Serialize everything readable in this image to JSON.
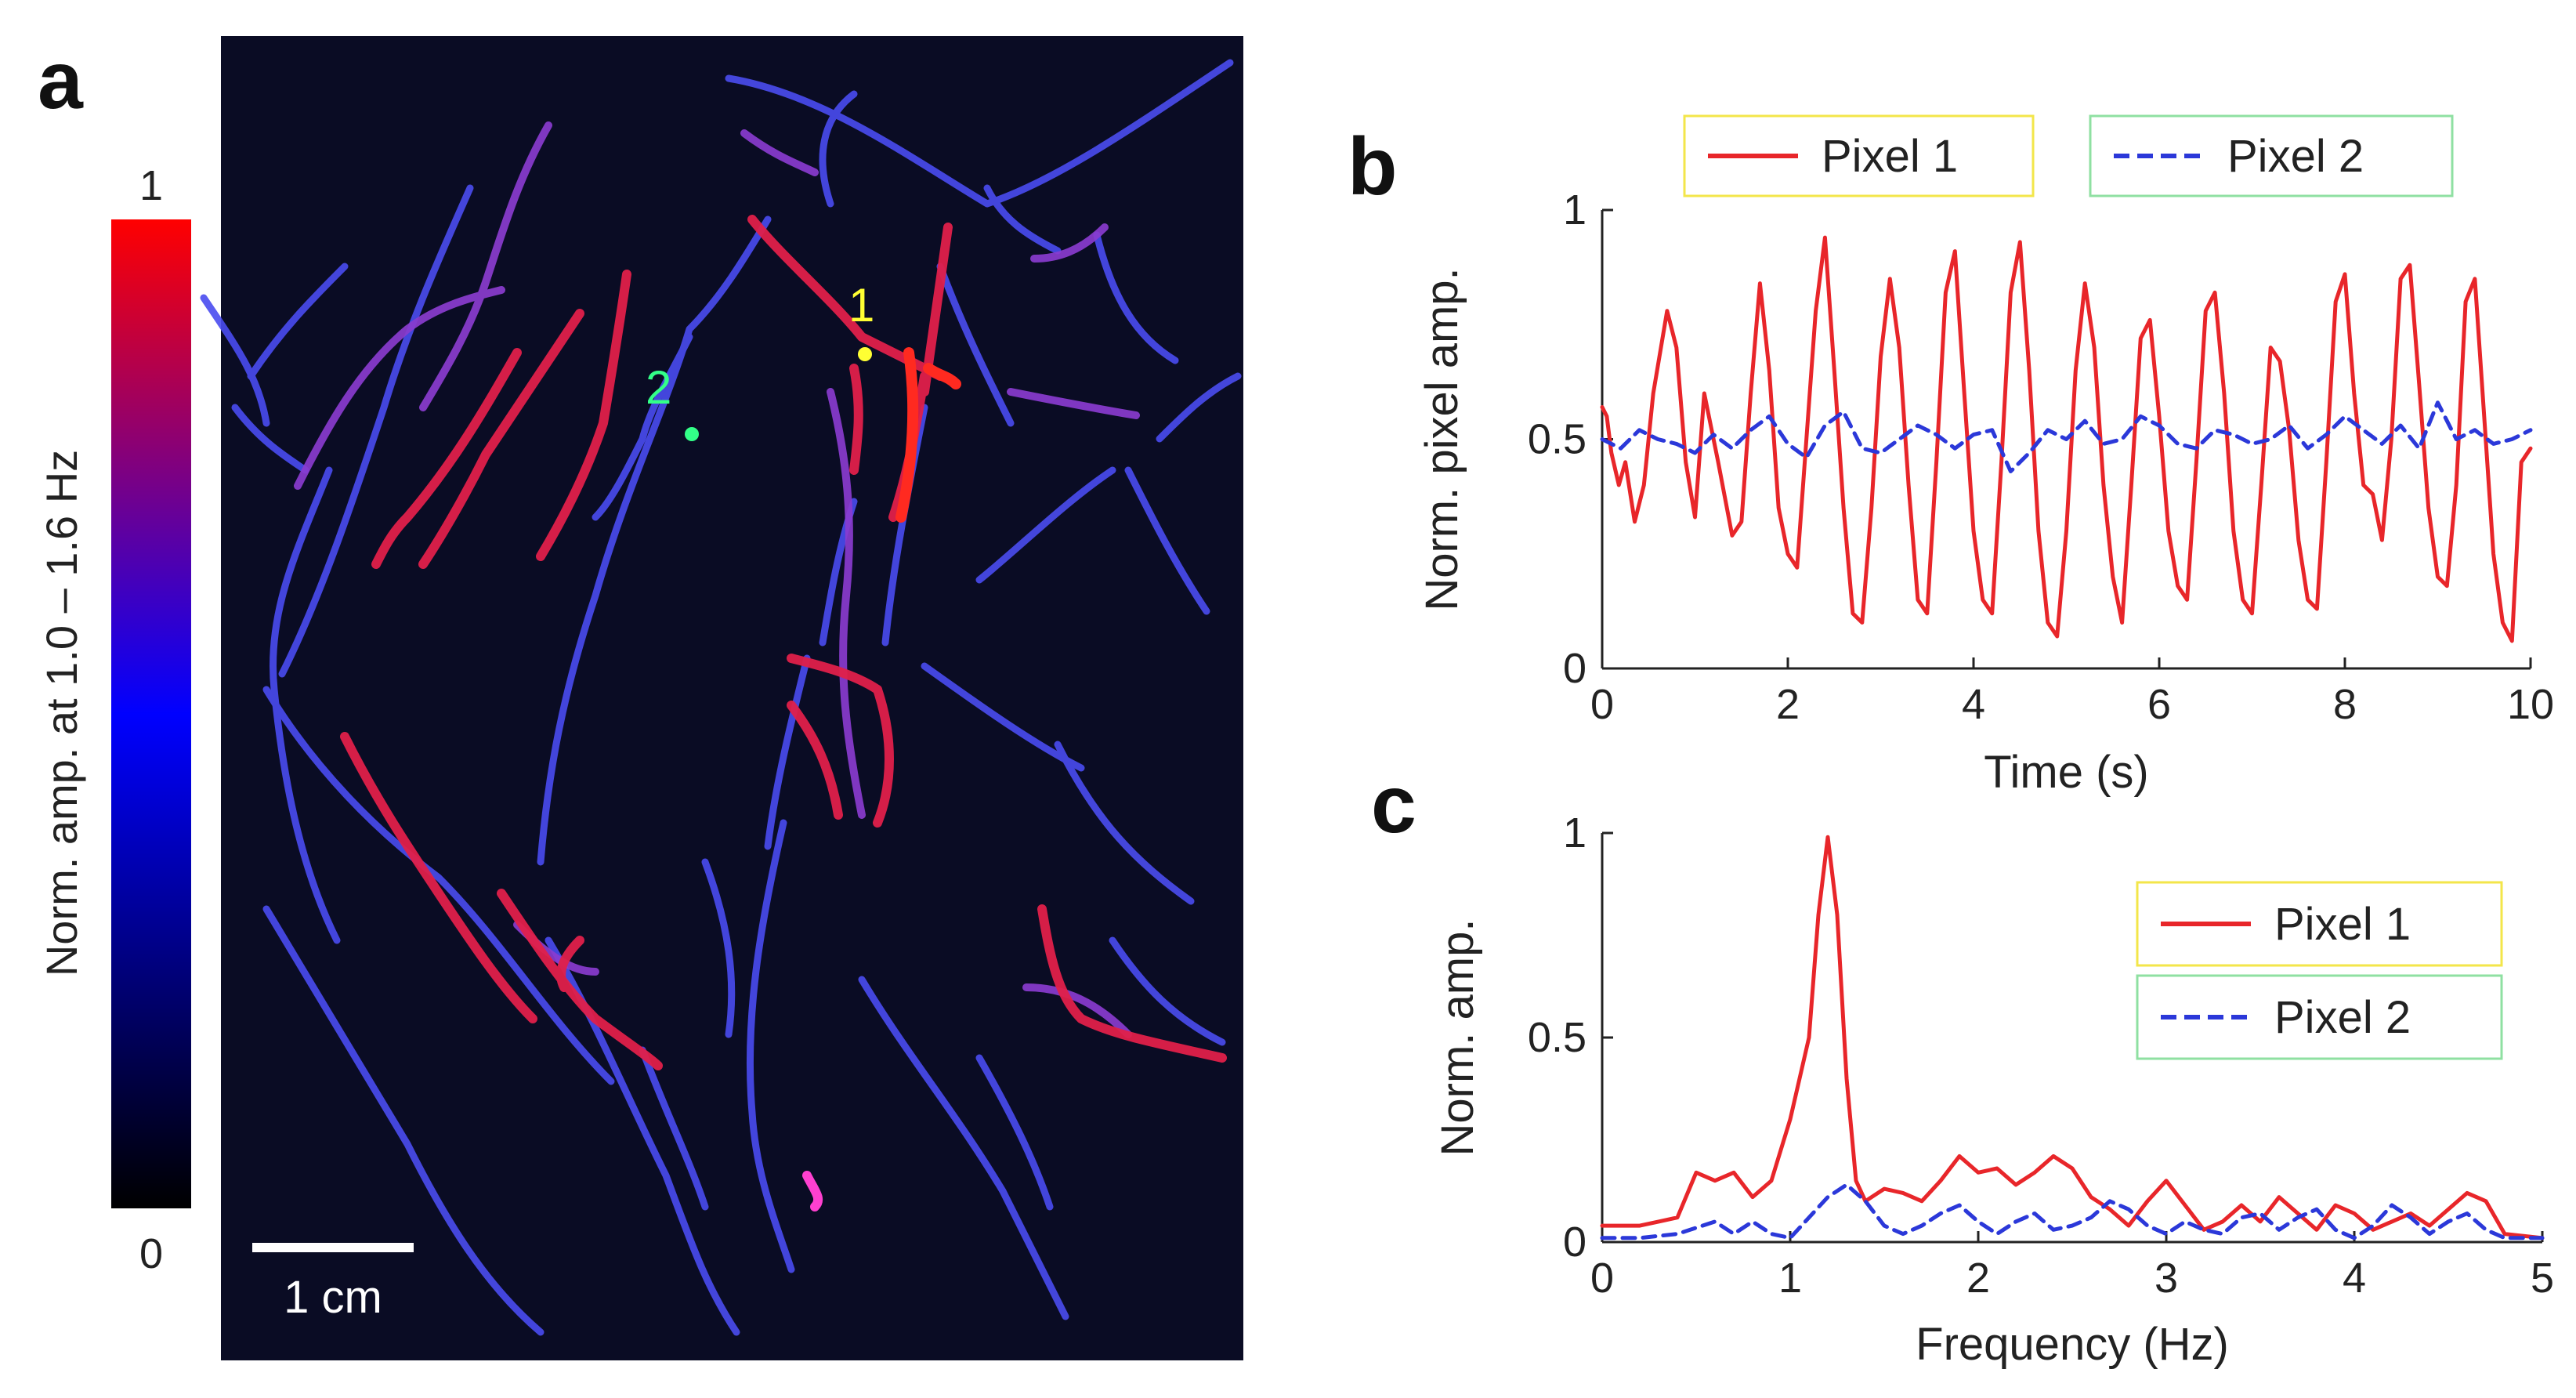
{
  "panels": {
    "a": {
      "letter": "a",
      "colorbar": {
        "label": "Norm. amp. at 1.0  – 1.6 Hz",
        "max_label": "1",
        "min_label": "0",
        "colors": [
          "#000000",
          "#0000ff",
          "#ff0000"
        ]
      },
      "scale_bar_label": "1 cm",
      "markers": [
        {
          "label": "1",
          "color": "#ffff33"
        },
        {
          "label": "2",
          "color": "#33ff88"
        }
      ],
      "image_background": "#0a0c24"
    },
    "b": {
      "letter": "b"
    },
    "c": {
      "letter": "c"
    }
  },
  "chart_data": [
    {
      "panel": "b",
      "type": "line",
      "xlabel": "Time (s)",
      "ylabel": "Norm. pixel amp.",
      "xlim": [
        0,
        10
      ],
      "ylim": [
        0,
        1
      ],
      "xticks": [
        0,
        2,
        4,
        6,
        8,
        10
      ],
      "yticks": [
        0,
        0.5,
        1
      ],
      "legend": {
        "placement": "top",
        "orientation": "horizontal"
      },
      "series": [
        {
          "name": "Pixel 1",
          "color": "#e8262a",
          "style": "solid",
          "legend_box": "#f3e64a",
          "x": [
            0,
            0.05,
            0.1,
            0.18,
            0.25,
            0.35,
            0.45,
            0.55,
            0.7,
            0.8,
            0.9,
            1.0,
            1.1,
            1.25,
            1.4,
            1.5,
            1.6,
            1.7,
            1.8,
            1.9,
            2.0,
            2.1,
            2.2,
            2.3,
            2.4,
            2.5,
            2.6,
            2.7,
            2.8,
            2.9,
            3.0,
            3.1,
            3.2,
            3.3,
            3.4,
            3.5,
            3.6,
            3.7,
            3.8,
            3.9,
            4.0,
            4.1,
            4.2,
            4.3,
            4.4,
            4.5,
            4.6,
            4.7,
            4.8,
            4.9,
            5.0,
            5.1,
            5.2,
            5.3,
            5.4,
            5.5,
            5.6,
            5.7,
            5.8,
            5.9,
            6.0,
            6.1,
            6.2,
            6.3,
            6.4,
            6.5,
            6.6,
            6.7,
            6.8,
            6.9,
            7.0,
            7.1,
            7.2,
            7.3,
            7.4,
            7.5,
            7.6,
            7.7,
            7.8,
            7.9,
            8.0,
            8.1,
            8.2,
            8.3,
            8.4,
            8.5,
            8.6,
            8.7,
            8.8,
            8.9,
            9.0,
            9.1,
            9.2,
            9.3,
            9.4,
            9.5,
            9.6,
            9.7,
            9.8,
            9.9,
            10.0
          ],
          "y": [
            0.57,
            0.55,
            0.47,
            0.4,
            0.45,
            0.32,
            0.4,
            0.6,
            0.78,
            0.7,
            0.45,
            0.33,
            0.6,
            0.45,
            0.29,
            0.32,
            0.6,
            0.84,
            0.65,
            0.35,
            0.25,
            0.22,
            0.5,
            0.78,
            0.94,
            0.65,
            0.35,
            0.12,
            0.1,
            0.35,
            0.68,
            0.85,
            0.7,
            0.4,
            0.15,
            0.12,
            0.45,
            0.82,
            0.91,
            0.6,
            0.3,
            0.15,
            0.12,
            0.45,
            0.82,
            0.93,
            0.65,
            0.3,
            0.1,
            0.07,
            0.3,
            0.65,
            0.84,
            0.7,
            0.4,
            0.2,
            0.1,
            0.4,
            0.72,
            0.76,
            0.55,
            0.3,
            0.18,
            0.15,
            0.45,
            0.78,
            0.82,
            0.6,
            0.3,
            0.15,
            0.12,
            0.4,
            0.7,
            0.67,
            0.52,
            0.28,
            0.15,
            0.13,
            0.45,
            0.8,
            0.86,
            0.6,
            0.4,
            0.38,
            0.28,
            0.5,
            0.85,
            0.88,
            0.62,
            0.35,
            0.2,
            0.18,
            0.4,
            0.8,
            0.85,
            0.55,
            0.25,
            0.1,
            0.06,
            0.45,
            0.48
          ]
        },
        {
          "name": "Pixel 2",
          "color": "#2b38d9",
          "style": "dashed",
          "legend_box": "#8fe0a2",
          "x": [
            0,
            0.2,
            0.4,
            0.6,
            0.8,
            1.0,
            1.2,
            1.4,
            1.6,
            1.8,
            2.0,
            2.2,
            2.4,
            2.6,
            2.8,
            3.0,
            3.2,
            3.4,
            3.6,
            3.8,
            4.0,
            4.2,
            4.4,
            4.6,
            4.8,
            5.0,
            5.2,
            5.4,
            5.6,
            5.8,
            6.0,
            6.2,
            6.4,
            6.6,
            6.8,
            7.0,
            7.2,
            7.4,
            7.6,
            7.8,
            8.0,
            8.2,
            8.4,
            8.6,
            8.8,
            9.0,
            9.2,
            9.4,
            9.6,
            9.8,
            10.0
          ],
          "y": [
            0.5,
            0.48,
            0.52,
            0.5,
            0.49,
            0.47,
            0.51,
            0.48,
            0.52,
            0.55,
            0.49,
            0.46,
            0.53,
            0.56,
            0.48,
            0.47,
            0.5,
            0.53,
            0.51,
            0.48,
            0.51,
            0.52,
            0.43,
            0.47,
            0.52,
            0.5,
            0.54,
            0.49,
            0.5,
            0.55,
            0.53,
            0.49,
            0.48,
            0.52,
            0.51,
            0.49,
            0.5,
            0.53,
            0.48,
            0.51,
            0.55,
            0.52,
            0.49,
            0.53,
            0.48,
            0.58,
            0.5,
            0.52,
            0.49,
            0.5,
            0.52
          ]
        }
      ]
    },
    {
      "panel": "c",
      "type": "line",
      "xlabel": "Frequency (Hz)",
      "ylabel": "Norm. amp.",
      "xlim": [
        0,
        5
      ],
      "ylim": [
        0,
        1
      ],
      "xticks": [
        0,
        1,
        2,
        3,
        4,
        5
      ],
      "yticks": [
        0,
        0.5,
        1
      ],
      "legend": {
        "placement": "top-right",
        "orientation": "vertical"
      },
      "series": [
        {
          "name": "Pixel 1",
          "color": "#e8262a",
          "style": "solid",
          "legend_box": "#f3e64a",
          "x": [
            0,
            0.2,
            0.3,
            0.4,
            0.5,
            0.6,
            0.7,
            0.8,
            0.9,
            1.0,
            1.1,
            1.15,
            1.2,
            1.25,
            1.3,
            1.35,
            1.4,
            1.5,
            1.6,
            1.7,
            1.8,
            1.9,
            2.0,
            2.1,
            2.2,
            2.3,
            2.4,
            2.5,
            2.6,
            2.7,
            2.8,
            2.9,
            3.0,
            3.1,
            3.2,
            3.3,
            3.4,
            3.5,
            3.6,
            3.7,
            3.8,
            3.9,
            4.0,
            4.1,
            4.2,
            4.3,
            4.4,
            4.5,
            4.6,
            4.7,
            4.8,
            5.0
          ],
          "y": [
            0.04,
            0.04,
            0.05,
            0.06,
            0.17,
            0.15,
            0.17,
            0.11,
            0.15,
            0.3,
            0.5,
            0.8,
            0.99,
            0.8,
            0.4,
            0.15,
            0.1,
            0.13,
            0.12,
            0.1,
            0.15,
            0.21,
            0.17,
            0.18,
            0.14,
            0.17,
            0.21,
            0.18,
            0.11,
            0.08,
            0.04,
            0.1,
            0.15,
            0.09,
            0.03,
            0.05,
            0.09,
            0.05,
            0.11,
            0.07,
            0.03,
            0.09,
            0.07,
            0.03,
            0.05,
            0.07,
            0.04,
            0.08,
            0.12,
            0.1,
            0.02,
            0.01
          ]
        },
        {
          "name": "Pixel 2",
          "color": "#2b38d9",
          "style": "dashed",
          "legend_box": "#8fe0a2",
          "x": [
            0,
            0.2,
            0.4,
            0.6,
            0.7,
            0.8,
            0.9,
            1.0,
            1.1,
            1.2,
            1.3,
            1.4,
            1.5,
            1.6,
            1.7,
            1.8,
            1.9,
            2.0,
            2.1,
            2.2,
            2.3,
            2.4,
            2.5,
            2.6,
            2.7,
            2.8,
            2.9,
            3.0,
            3.1,
            3.2,
            3.3,
            3.4,
            3.5,
            3.6,
            3.7,
            3.8,
            3.9,
            4.0,
            4.1,
            4.2,
            4.3,
            4.4,
            4.5,
            4.6,
            4.7,
            4.8,
            5.0
          ],
          "y": [
            0.01,
            0.01,
            0.02,
            0.05,
            0.02,
            0.05,
            0.02,
            0.01,
            0.06,
            0.11,
            0.14,
            0.1,
            0.04,
            0.02,
            0.04,
            0.07,
            0.09,
            0.05,
            0.02,
            0.05,
            0.07,
            0.03,
            0.04,
            0.06,
            0.1,
            0.08,
            0.04,
            0.02,
            0.05,
            0.03,
            0.02,
            0.06,
            0.07,
            0.03,
            0.06,
            0.08,
            0.03,
            0.01,
            0.04,
            0.09,
            0.06,
            0.02,
            0.05,
            0.07,
            0.03,
            0.01,
            0.01
          ]
        }
      ]
    }
  ]
}
